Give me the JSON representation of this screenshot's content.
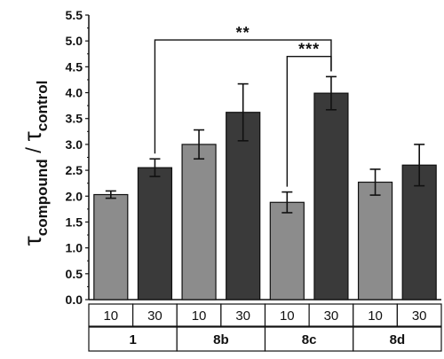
{
  "chart_data": {
    "type": "bar",
    "title": "",
    "xlabel": "",
    "ylabel_main": "τ",
    "ylabel_num_sub": "compound",
    "ylabel_sep": " / ",
    "ylabel_den_sub": "control",
    "ylim": [
      0,
      5.5
    ],
    "ytick_step": 0.5,
    "yticks": [
      "0.0",
      "0.5",
      "1.0",
      "1.5",
      "2.0",
      "2.5",
      "3.0",
      "3.5",
      "4.0",
      "4.5",
      "5.0",
      "5.5"
    ],
    "grid": false,
    "groups": [
      "1",
      "8b",
      "8c",
      "8d"
    ],
    "sub_categories": [
      "10",
      "30"
    ],
    "colors": {
      "10": "#8c8c8c",
      "30": "#3a3a3a"
    },
    "bars": [
      {
        "group": "1",
        "sub": "10",
        "value": 2.03,
        "error": 0.07
      },
      {
        "group": "1",
        "sub": "30",
        "value": 2.55,
        "error": 0.17
      },
      {
        "group": "8b",
        "sub": "10",
        "value": 3.0,
        "error": 0.28
      },
      {
        "group": "8b",
        "sub": "30",
        "value": 3.62,
        "error": 0.55
      },
      {
        "group": "8c",
        "sub": "10",
        "value": 1.88,
        "error": 0.2
      },
      {
        "group": "8c",
        "sub": "30",
        "value": 3.99,
        "error": 0.32
      },
      {
        "group": "8d",
        "sub": "10",
        "value": 2.27,
        "error": 0.25
      },
      {
        "group": "8d",
        "sub": "30",
        "value": 2.6,
        "error": 0.4
      }
    ],
    "significance": [
      {
        "from_bar": 1,
        "to_bar": 5,
        "label": "**"
      },
      {
        "from_bar": 4,
        "to_bar": 5,
        "label": "***"
      }
    ]
  }
}
